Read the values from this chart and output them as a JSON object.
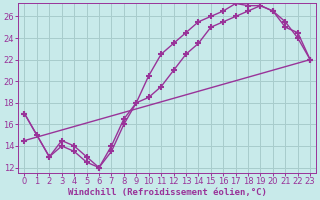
{
  "background_color": "#c8eaea",
  "grid_color": "#a8cccc",
  "line_color": "#993399",
  "marker": "+",
  "marker_size": 5,
  "marker_lw": 1.5,
  "line_width": 1.0,
  "xlabel": "Windchill (Refroidissement éolien,°C)",
  "xlabel_fontsize": 6.5,
  "tick_fontsize": 6.0,
  "xlim": [
    -0.5,
    23.5
  ],
  "ylim": [
    11.5,
    27.2
  ],
  "xticks": [
    0,
    1,
    2,
    3,
    4,
    5,
    6,
    7,
    8,
    9,
    10,
    11,
    12,
    13,
    14,
    15,
    16,
    17,
    18,
    19,
    20,
    21,
    22,
    23
  ],
  "yticks": [
    12,
    14,
    16,
    18,
    20,
    22,
    24,
    26
  ],
  "line1_x": [
    0,
    1,
    2,
    3,
    4,
    5,
    6,
    7,
    8,
    9,
    10,
    11,
    12,
    13,
    14,
    15,
    16,
    17,
    18,
    19,
    20,
    21,
    22,
    23
  ],
  "line1_y": [
    17.0,
    15.0,
    13.0,
    14.0,
    13.5,
    12.5,
    12.0,
    13.5,
    16.0,
    18.0,
    18.5,
    19.5,
    21.0,
    22.5,
    23.5,
    25.0,
    25.5,
    26.0,
    26.5,
    27.0,
    26.5,
    25.0,
    24.5,
    22.0
  ],
  "line2_x": [
    0,
    2,
    3,
    4,
    5,
    6,
    7,
    8,
    9,
    10,
    11,
    12,
    13,
    14,
    15,
    16,
    17,
    18,
    19,
    20,
    21,
    22,
    23
  ],
  "line2_y": [
    17.0,
    13.0,
    14.5,
    14.0,
    13.0,
    12.0,
    14.0,
    16.5,
    18.0,
    20.5,
    22.5,
    23.5,
    24.5,
    25.5,
    26.0,
    26.5,
    27.2,
    27.0,
    27.0,
    26.5,
    25.5,
    24.0,
    22.0
  ],
  "line3_x": [
    0,
    23
  ],
  "line3_y": [
    14.5,
    22.0
  ]
}
